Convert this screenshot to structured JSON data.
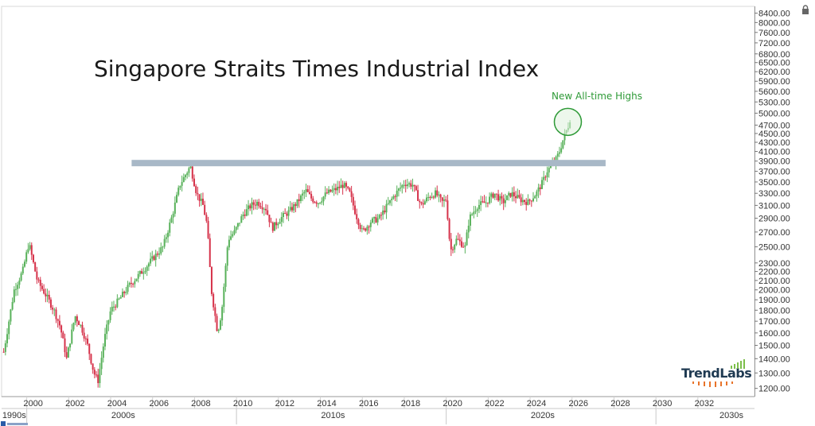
{
  "chart_data": {
    "type": "candlestick",
    "title": "Singapore Straits Times Industrial Index",
    "y_scale": "log",
    "ylim": [
      1150,
      8700
    ],
    "y_ticks": [
      1200,
      1300,
      1400,
      1500,
      1600,
      1700,
      1800,
      1900,
      2000,
      2100,
      2200,
      2300,
      2500,
      2700,
      2900,
      3100,
      3300,
      3500,
      3700,
      3900,
      4100,
      4300,
      4500,
      4700,
      5000,
      5300,
      5600,
      5900,
      6200,
      6500,
      6800,
      7200,
      7600,
      8000,
      8400
    ],
    "y_tick_labels": [
      "1200.00",
      "1300.00",
      "1400.00",
      "1500.00",
      "1600.00",
      "1700.00",
      "1800.00",
      "1900.00",
      "2000.00",
      "2100.00",
      "2200.00",
      "2300.00",
      "2500.00",
      "2700.00",
      "2900.00",
      "3100.00",
      "3300.00",
      "3500.00",
      "3700.00",
      "3900.00",
      "4100.00",
      "4300.00",
      "4500.00",
      "4700.00",
      "5000.00",
      "5300.00",
      "5600.00",
      "5900.00",
      "6200.00",
      "6500.00",
      "6800.00",
      "7200.00",
      "7600.00",
      "8000.00",
      "8400.00"
    ],
    "xlim": [
      1998.8,
      2034.7
    ],
    "x_ticks": [
      2000,
      2002,
      2004,
      2006,
      2008,
      2010,
      2012,
      2014,
      2016,
      2018,
      2020,
      2022,
      2024,
      2026,
      2028,
      2030,
      2032
    ],
    "x_tick_labels": [
      "2000",
      "2002",
      "2004",
      "2006",
      "2008",
      "2010",
      "2012",
      "2014",
      "2016",
      "2018",
      "2020",
      "2022",
      "2024",
      "2026",
      "2028",
      "2030",
      "2032"
    ],
    "decade_labels": [
      {
        "label": "1990s",
        "x": 1999.4
      },
      {
        "label": "2000s",
        "x": 2004.6
      },
      {
        "label": "2010s",
        "x": 2014.6
      },
      {
        "label": "2020s",
        "x": 2024.6
      },
      {
        "label": "2030s",
        "x": 2033.6
      }
    ],
    "decade_dividers": [
      2000,
      2010,
      2020,
      2030
    ],
    "price_path": [
      [
        1998.9,
        1450
      ],
      [
        1999.4,
        2000
      ],
      [
        1999.8,
        2200
      ],
      [
        2000.1,
        2550
      ],
      [
        2000.5,
        2100
      ],
      [
        2000.9,
        1950
      ],
      [
        2001.3,
        1800
      ],
      [
        2001.6,
        1650
      ],
      [
        2001.9,
        1400
      ],
      [
        2002.3,
        1750
      ],
      [
        2002.6,
        1650
      ],
      [
        2002.9,
        1500
      ],
      [
        2003.2,
        1300
      ],
      [
        2003.4,
        1250
      ],
      [
        2003.7,
        1550
      ],
      [
        2004.0,
        1800
      ],
      [
        2004.4,
        1900
      ],
      [
        2004.9,
        2050
      ],
      [
        2005.5,
        2200
      ],
      [
        2006.0,
        2350
      ],
      [
        2006.5,
        2500
      ],
      [
        2006.9,
        2900
      ],
      [
        2007.3,
        3450
      ],
      [
        2007.8,
        3800
      ],
      [
        2008.1,
        3300
      ],
      [
        2008.4,
        3100
      ],
      [
        2008.6,
        2800
      ],
      [
        2008.8,
        2000
      ],
      [
        2009.1,
        1600
      ],
      [
        2009.3,
        1800
      ],
      [
        2009.6,
        2600
      ],
      [
        2009.9,
        2700
      ],
      [
        2010.3,
        2950
      ],
      [
        2010.7,
        3100
      ],
      [
        2011.0,
        3150
      ],
      [
        2011.4,
        3050
      ],
      [
        2011.7,
        2750
      ],
      [
        2012.1,
        2900
      ],
      [
        2012.5,
        3000
      ],
      [
        2012.9,
        3150
      ],
      [
        2013.3,
        3350
      ],
      [
        2013.6,
        3200
      ],
      [
        2013.9,
        3150
      ],
      [
        2014.3,
        3300
      ],
      [
        2014.8,
        3380
      ],
      [
        2015.1,
        3450
      ],
      [
        2015.4,
        3300
      ],
      [
        2015.7,
        2950
      ],
      [
        2016.0,
        2700
      ],
      [
        2016.4,
        2850
      ],
      [
        2016.8,
        2900
      ],
      [
        2017.2,
        3100
      ],
      [
        2017.6,
        3300
      ],
      [
        2018.0,
        3480
      ],
      [
        2018.4,
        3450
      ],
      [
        2018.8,
        3100
      ],
      [
        2019.2,
        3250
      ],
      [
        2019.5,
        3300
      ],
      [
        2019.8,
        3150
      ],
      [
        2020.0,
        3200
      ],
      [
        2020.2,
        2450
      ],
      [
        2020.5,
        2600
      ],
      [
        2020.9,
        2500
      ],
      [
        2021.1,
        2900
      ],
      [
        2021.5,
        3100
      ],
      [
        2021.9,
        3150
      ],
      [
        2022.3,
        3300
      ],
      [
        2022.7,
        3150
      ],
      [
        2023.1,
        3300
      ],
      [
        2023.5,
        3200
      ],
      [
        2023.9,
        3150
      ],
      [
        2024.3,
        3300
      ],
      [
        2024.6,
        3500
      ],
      [
        2024.8,
        3700
      ],
      [
        2025.0,
        3800
      ],
      [
        2025.2,
        3900
      ],
      [
        2025.4,
        4100
      ],
      [
        2025.6,
        4400
      ],
      [
        2025.8,
        4650
      ],
      [
        2025.95,
        4950
      ]
    ],
    "candle_colors": {
      "up": "#58b15a",
      "down": "#d6324a"
    },
    "resistance_level": 3860,
    "resistance_from": 2005.0,
    "resistance_to": 2027.6,
    "resistance_color": "#a8b8c7",
    "highlight_at": [
      2025.8,
      4780
    ],
    "highlight_color": "#2e9a37",
    "highlight_fill": "#dff0dc",
    "annotation": "New All-time Highs"
  },
  "brand": {
    "name": "TrendLabs",
    "text_color": "#1f3a52",
    "accent_color": "#e8732a",
    "bar_color": "#7cbf4a"
  },
  "icons": {
    "lock": "lock-icon"
  }
}
